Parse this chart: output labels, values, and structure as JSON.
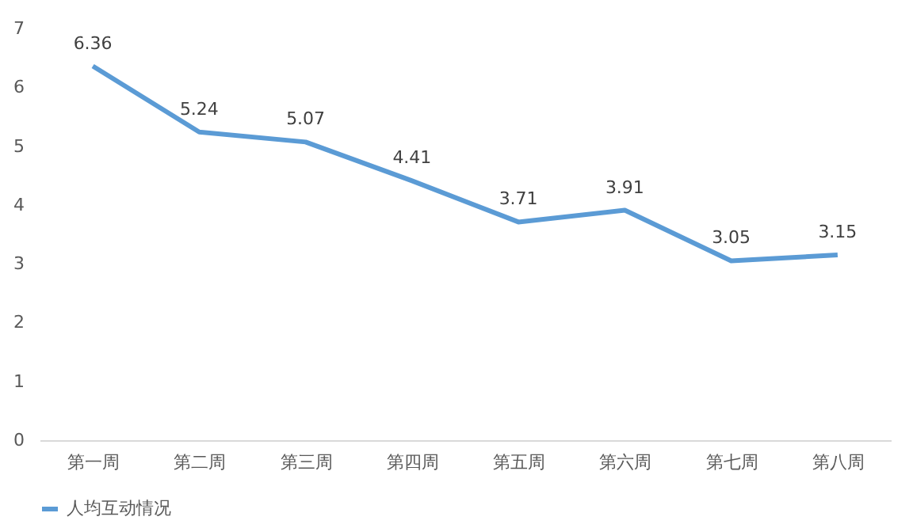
{
  "chart_data": {
    "type": "line",
    "categories": [
      "第一周",
      "第二周",
      "第三周",
      "第四周",
      "第五周",
      "第六周",
      "第七周",
      "第八周"
    ],
    "series": [
      {
        "name": "人均互动情况",
        "color": "#5b9bd5",
        "values": [
          6.36,
          5.24,
          5.07,
          4.41,
          3.71,
          3.91,
          3.05,
          3.15
        ]
      }
    ],
    "ylim": [
      0,
      7
    ],
    "yticks": [
      0,
      1,
      2,
      3,
      4,
      5,
      6,
      7
    ],
    "grid": false,
    "legend": "bottom",
    "data_labels": true,
    "marker": "none",
    "line_style": "solid"
  }
}
